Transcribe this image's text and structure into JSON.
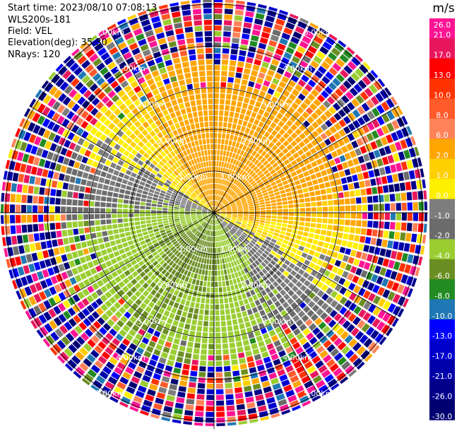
{
  "header": {
    "start_time": "Start time: 2023/08/10 07:08:13",
    "instrument": "WLS200s-181",
    "field": "Field: VEL",
    "elevation": "Elevation(deg): 35.30",
    "nrays": "NRays: 120"
  },
  "chart_data": {
    "type": "heatmap",
    "projection": "polar",
    "nrays": 120,
    "range_rings": [
      "1.00km",
      "2.00km",
      "3.00km",
      "4.00km",
      "5.00km"
    ],
    "ring_label_angles_deg": [
      30,
      150,
      210,
      330
    ],
    "spoke_angles_deg": [
      0,
      30,
      60,
      90,
      120,
      150,
      180,
      210,
      240,
      270,
      300,
      330
    ],
    "colorbar": {
      "unit": "m/s",
      "ticks": [
        "26.0",
        "21.0",
        "17.0",
        "13.0",
        "10.0",
        "8.0",
        "6.0",
        "2.0",
        "1.0",
        "0.0",
        "-1.0",
        "-2.0",
        "-4.0",
        "-6.0",
        "-8.0",
        "-10.0",
        "-13.0",
        "-17.0",
        "-21.0",
        "-26.0",
        "-30.0"
      ],
      "colors": [
        "#ff1493",
        "#e8175d",
        "#ff0000",
        "#ff3300",
        "#ff5a2a",
        "#ff8259",
        "#ffa500",
        "#ffcf00",
        "#fff000",
        "#7d7d7d",
        "#6b6b6b",
        "#9acd32",
        "#6b8e23",
        "#228b22",
        "#1f78b4",
        "#0000ff",
        "#0000cd",
        "#0000aa",
        "#00008b",
        "#000070"
      ]
    },
    "colors": {
      "bg": "#ffffff",
      "grid": "#000000",
      "ring_label": "#ffffff"
    }
  }
}
